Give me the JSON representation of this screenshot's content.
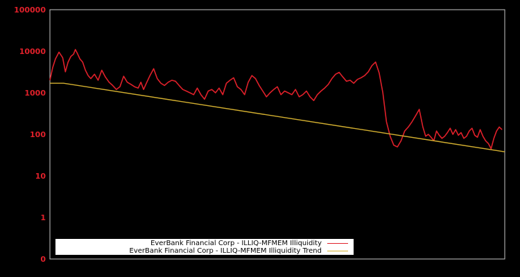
{
  "chart_data": {
    "type": "line",
    "title": "",
    "xlabel": "",
    "ylabel": "",
    "yscale": "log",
    "ylim": [
      0.1,
      100000
    ],
    "y_ticks": [
      {
        "value": 100000,
        "label": "100000"
      },
      {
        "value": 10000,
        "label": "10000"
      },
      {
        "value": 1000,
        "label": "1000"
      },
      {
        "value": 100,
        "label": "100"
      },
      {
        "value": 10,
        "label": "10"
      },
      {
        "value": 1,
        "label": "1"
      },
      {
        "value": 0.1,
        "label": "0"
      }
    ],
    "x_ticks": [],
    "grid": false,
    "legend_position": "lower-left",
    "series": [
      {
        "name": "EverBank Financial Corp - ILLIQ-MFMEM Illiquidity",
        "color": "#e0202a",
        "x_frac": [
          0,
          0.006,
          0.012,
          0.02,
          0.028,
          0.034,
          0.04,
          0.046,
          0.052,
          0.056,
          0.06,
          0.066,
          0.072,
          0.078,
          0.084,
          0.09,
          0.098,
          0.106,
          0.114,
          0.122,
          0.13,
          0.138,
          0.146,
          0.154,
          0.162,
          0.17,
          0.178,
          0.186,
          0.194,
          0.2,
          0.206,
          0.212,
          0.22,
          0.228,
          0.236,
          0.244,
          0.252,
          0.26,
          0.268,
          0.276,
          0.284,
          0.292,
          0.3,
          0.308,
          0.316,
          0.324,
          0.332,
          0.34,
          0.348,
          0.356,
          0.364,
          0.372,
          0.38,
          0.388,
          0.396,
          0.404,
          0.412,
          0.42,
          0.428,
          0.436,
          0.444,
          0.452,
          0.46,
          0.468,
          0.476,
          0.484,
          0.492,
          0.5,
          0.508,
          0.516,
          0.524,
          0.532,
          0.54,
          0.548,
          0.556,
          0.564,
          0.572,
          0.58,
          0.588,
          0.596,
          0.604,
          0.612,
          0.62,
          0.628,
          0.636,
          0.644,
          0.652,
          0.66,
          0.668,
          0.676,
          0.684,
          0.692,
          0.7,
          0.708,
          0.716,
          0.724,
          0.732,
          0.74,
          0.748,
          0.756,
          0.764,
          0.772,
          0.78,
          0.788,
          0.796,
          0.804,
          0.812,
          0.82,
          0.826,
          0.832,
          0.838,
          0.844,
          0.85,
          0.856,
          0.862,
          0.868,
          0.874,
          0.88,
          0.886,
          0.892,
          0.898,
          0.904,
          0.91,
          0.916,
          0.922,
          0.928,
          0.934,
          0.94,
          0.946,
          0.952,
          0.958,
          0.964,
          0.97,
          0.976,
          0.982,
          0.988,
          0.994,
          1.0
        ],
        "values": [
          2000,
          4000,
          6500,
          9500,
          7000,
          3200,
          5500,
          7500,
          8500,
          11000,
          9000,
          6500,
          5500,
          3500,
          2600,
          2200,
          2800,
          2000,
          3500,
          2400,
          1800,
          1500,
          1200,
          1400,
          2500,
          1800,
          1600,
          1400,
          1300,
          1800,
          1200,
          1700,
          2600,
          3800,
          2200,
          1700,
          1500,
          1800,
          2000,
          1900,
          1500,
          1200,
          1100,
          1000,
          900,
          1300,
          900,
          700,
          1100,
          1200,
          1000,
          1300,
          900,
          1700,
          2000,
          2300,
          1400,
          1200,
          900,
          1800,
          2600,
          2200,
          1500,
          1100,
          800,
          1000,
          1200,
          1400,
          900,
          1100,
          1000,
          900,
          1200,
          800,
          900,
          1100,
          800,
          650,
          900,
          1100,
          1300,
          1600,
          2200,
          2800,
          3100,
          2400,
          1900,
          2000,
          1700,
          2100,
          2300,
          2600,
          3200,
          4500,
          5500,
          3000,
          1000,
          200,
          90,
          55,
          50,
          70,
          120,
          150,
          200,
          280,
          400,
          150,
          90,
          100,
          85,
          70,
          120,
          95,
          80,
          90,
          110,
          140,
          100,
          130,
          95,
          110,
          80,
          90,
          120,
          140,
          95,
          85,
          130,
          90,
          70,
          60,
          45,
          80,
          120,
          150,
          130
        ]
      },
      {
        "name": "EverBank Financial Corp - ILLIQ-MFMEM Illiquidity Trend",
        "color": "#d4b030",
        "x_frac": [
          0,
          0.03,
          1.0
        ],
        "values": [
          1700,
          1700,
          38
        ]
      }
    ]
  },
  "legend": {
    "items": [
      {
        "label": "EverBank Financial Corp - ILLIQ-MFMEM Illiquidity",
        "color": "#e0202a"
      },
      {
        "label": "EverBank Financial Corp - ILLIQ-MFMEM Illiquidity Trend",
        "color": "#d4b030"
      }
    ]
  },
  "colors": {
    "background": "#000000",
    "axis_frame": "#c8c8c8",
    "tick_label": "#e0202a"
  }
}
